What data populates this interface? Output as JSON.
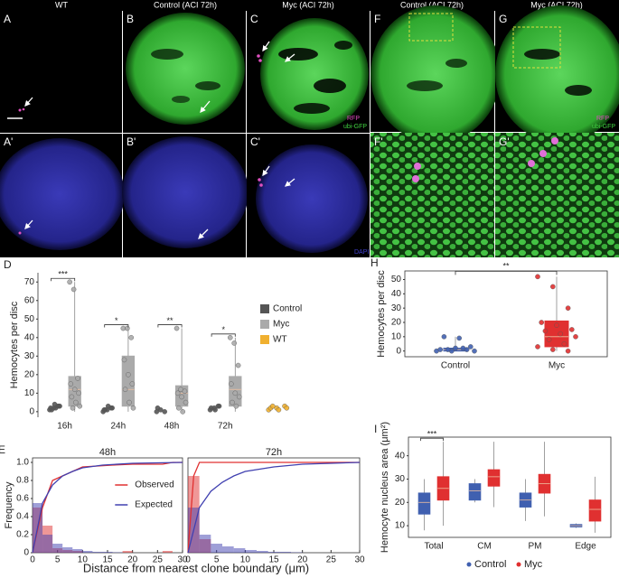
{
  "header": {
    "columns": [
      "WT",
      "Control (ACI 72h)",
      "Myc (ACI 72h)",
      "Control (ACI 72h)",
      "Myc (ACI 72h)"
    ]
  },
  "panels": {
    "labels": [
      "A",
      "B",
      "C",
      "F",
      "G",
      "A'",
      "B'",
      "C'",
      "F'",
      "G'"
    ],
    "annotations": {
      "rfp": "RFP",
      "gfp": "ubi-GFP",
      "dapi": "DAPI"
    }
  },
  "chart_data": [
    {
      "type": "box",
      "panel": "D",
      "ylabel": "Hemocytes per disc",
      "categories": [
        "16h",
        "24h",
        "48h",
        "72h",
        null
      ],
      "ylim": [
        -3,
        75
      ],
      "yticks": [
        0,
        10,
        20,
        30,
        40,
        50,
        60,
        70
      ],
      "legend": "right",
      "series": [
        {
          "name": "Control",
          "color": "#555555",
          "points": [
            [
              1,
              2,
              3,
              2,
              4,
              3,
              1,
              2,
              3
            ],
            [
              0,
              1,
              2,
              1,
              3,
              2,
              1
            ],
            [
              0,
              1,
              0,
              2
            ],
            [
              1,
              2,
              3,
              2,
              1,
              3
            ],
            []
          ]
        },
        {
          "name": "Myc",
          "color": "#aaaaaa",
          "boxes": [
            {
              "low": 0,
              "q1": 3,
              "median": 12,
              "q3": 19,
              "high": 70
            },
            {
              "low": 0,
              "q1": 3,
              "median": 12,
              "q3": 30,
              "high": 45
            },
            {
              "low": 0,
              "q1": 3,
              "median": 10,
              "q3": 14,
              "high": 45
            },
            {
              "low": 0,
              "q1": 3,
              "median": 12,
              "q3": 19,
              "high": 40
            },
            null
          ],
          "points": [
            [
              70,
              66,
              18,
              15,
              12,
              10,
              8,
              5,
              3,
              2
            ],
            [
              45,
              45,
              40,
              28,
              20,
              15,
              12,
              5,
              2
            ],
            [
              45,
              12,
              11,
              10,
              8,
              5,
              2,
              0
            ],
            [
              40,
              37,
              25,
              15,
              10,
              8,
              5,
              3
            ],
            []
          ]
        },
        {
          "name": "WT",
          "color": "#f0b030",
          "points": [
            [],
            [],
            [],
            [],
            [
              1,
              2,
              3,
              2,
              1,
              2,
              3
            ]
          ]
        }
      ],
      "significance": [
        "***",
        "*",
        "**",
        "*",
        null
      ]
    },
    {
      "type": "histogram",
      "panel": "E",
      "title": "48h",
      "ylabel": "Frequency",
      "xlabel": "Distance from nearest clone boundary (μm)",
      "bins": [
        0,
        2,
        4,
        6,
        8,
        10,
        12,
        14,
        16,
        18,
        20,
        22,
        24,
        26,
        28,
        30
      ],
      "xlim": [
        0,
        30
      ],
      "xticks": [
        0,
        5,
        10,
        15,
        20,
        25,
        30
      ],
      "ylim": [
        0,
        1.05
      ],
      "yticks": [
        0,
        0.2,
        0.4,
        0.6,
        0.8,
        {
          "value": 1,
          "label": "1.0"
        }
      ],
      "legend": "right",
      "series": [
        {
          "name": "Observed",
          "color": "#e03030",
          "values": [
            0.5,
            0.3,
            0.05,
            0.03,
            0.02,
            0,
            0,
            0,
            0,
            0.02,
            0,
            0,
            0,
            0.02,
            0
          ],
          "cdf_x": [
            0,
            2,
            4,
            6,
            10,
            16,
            20,
            26,
            28,
            30
          ],
          "cdf_y": [
            0,
            0.5,
            0.8,
            0.85,
            0.95,
            0.97,
            0.98,
            0.98,
            1,
            1
          ]
        },
        {
          "name": "Expected",
          "color": "#4040b0",
          "values": [
            0.55,
            0.2,
            0.1,
            0.06,
            0.04,
            0.02,
            0.01,
            0.01,
            0.005,
            0,
            0,
            0,
            0,
            0,
            0
          ],
          "cdf_x": [
            0,
            2,
            4,
            6,
            8,
            10,
            14,
            20,
            30
          ],
          "cdf_y": [
            0,
            0.55,
            0.75,
            0.85,
            0.9,
            0.94,
            0.97,
            0.99,
            1
          ]
        }
      ]
    },
    {
      "type": "histogram",
      "title": "72h",
      "bins": [
        0,
        2,
        4,
        6,
        8,
        10,
        12,
        14,
        16,
        18,
        20,
        22,
        24,
        26,
        28,
        30
      ],
      "xlim": [
        0,
        30
      ],
      "xticks": [
        0,
        5,
        10,
        15,
        20,
        25,
        30
      ],
      "ylim": [
        0,
        1.05
      ],
      "series": [
        {
          "color": "#e03030",
          "values": [
            0.85,
            0.15,
            0,
            0,
            0,
            0,
            0,
            0,
            0,
            0,
            0,
            0,
            0,
            0,
            0
          ],
          "cdf_x": [
            0,
            1,
            2,
            3,
            30
          ],
          "cdf_y": [
            0,
            0.85,
            1,
            1,
            1
          ]
        },
        {
          "color": "#4040b0",
          "values": [
            0.5,
            0.2,
            0.1,
            0.07,
            0.05,
            0.03,
            0.02,
            0.01,
            0.01,
            0.005,
            0,
            0,
            0,
            0,
            0
          ],
          "cdf_x": [
            0,
            2,
            4,
            6,
            8,
            10,
            15,
            20,
            25,
            30
          ],
          "cdf_y": [
            0,
            0.5,
            0.68,
            0.78,
            0.85,
            0.9,
            0.95,
            0.98,
            0.99,
            1
          ]
        }
      ]
    },
    {
      "type": "box",
      "panel": "H",
      "ylabel": "Hemocytes per disc",
      "categories": [
        "Control",
        "Myc"
      ],
      "ylim": [
        -4,
        56
      ],
      "yticks": [
        0,
        10,
        20,
        30,
        40,
        50
      ],
      "series": [
        {
          "color": "#4060b0",
          "boxes": [
            {
              "low": 0,
              "q1": 0,
              "median": 1,
              "q3": 2,
              "high": 10
            },
            null
          ],
          "points": [
            [
              0,
              0,
              1,
              1,
              2,
              3,
              10,
              9,
              0,
              1,
              2
            ],
            []
          ]
        },
        {
          "color": "#e03030",
          "boxes": [
            null,
            {
              "low": 0,
              "q1": 3,
              "median": 10,
              "q3": 21,
              "high": 52
            }
          ],
          "points": [
            [],
            [
              52,
              45,
              30,
              20,
              18,
              15,
              14,
              12,
              10,
              8,
              5,
              3,
              1,
              0
            ]
          ]
        }
      ],
      "significance": "**"
    },
    {
      "type": "box",
      "panel": "I",
      "ylabel": "Hemocyte nucleus area (μm²)",
      "categories": [
        "Total",
        "CM",
        "PM",
        "Edge"
      ],
      "ylim": [
        5,
        48
      ],
      "yticks": [
        10,
        20,
        30,
        40
      ],
      "legend": "bottom",
      "series": [
        {
          "name": "Control",
          "color": "#4060b0",
          "boxes": [
            {
              "low": 8,
              "q1": 15,
              "median": 20,
              "q3": 24,
              "high": 30
            },
            {
              "low": 20,
              "q1": 21,
              "median": 25,
              "q3": 28,
              "high": 30
            },
            {
              "low": 12,
              "q1": 18,
              "median": 21,
              "q3": 24,
              "high": 30
            },
            {
              "low": 9,
              "q1": 9.5,
              "median": 10,
              "q3": 10.5,
              "high": 11
            }
          ]
        },
        {
          "name": "Myc",
          "color": "#e03030",
          "boxes": [
            {
              "low": 10,
              "q1": 21,
              "median": 26,
              "q3": 31,
              "high": 46
            },
            {
              "low": 18,
              "q1": 27,
              "median": 31,
              "q3": 34,
              "high": 46
            },
            {
              "low": 14,
              "q1": 24,
              "median": 28,
              "q3": 32,
              "high": 46
            },
            {
              "low": 7,
              "q1": 12,
              "median": 17,
              "q3": 21,
              "high": 31
            }
          ]
        }
      ],
      "significance": [
        "***",
        null,
        null,
        null
      ]
    }
  ]
}
